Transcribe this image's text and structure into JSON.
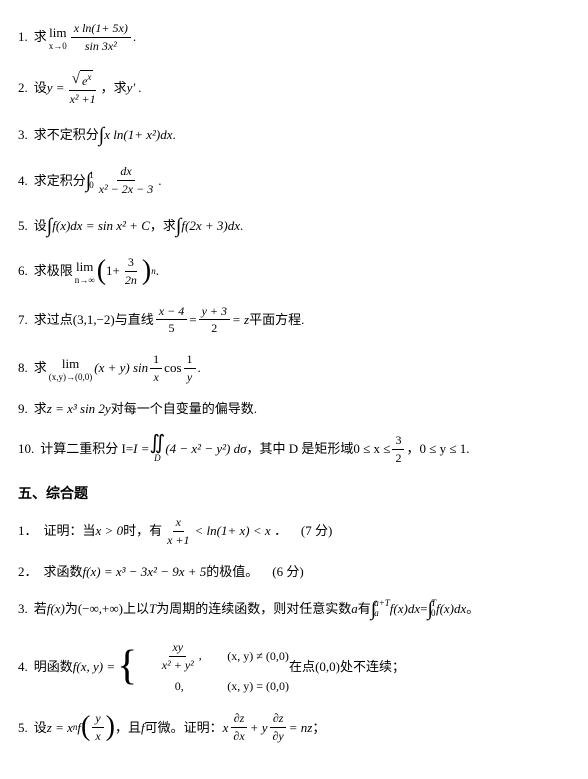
{
  "section4": {
    "problems": [
      {
        "num": "1.",
        "prefix": "求",
        "suffix": "."
      },
      {
        "num": "2.",
        "prefix": "设 ",
        "mid": "，求",
        "end": "y′ ."
      },
      {
        "num": "3.",
        "prefix": "求不定积分",
        "suffix": "."
      },
      {
        "num": "4.",
        "prefix": "求定积分",
        "suffix": "."
      },
      {
        "num": "5.",
        "prefix": "设",
        "mid": "，求",
        "suffix": "."
      },
      {
        "num": "6.",
        "prefix": "求极限",
        "suffix": "."
      },
      {
        "num": "7.",
        "prefix": "求过点",
        "point": "(3,1,−2)",
        "mid": "与直线",
        "eq": "= z",
        "suffix": " 平面方程."
      },
      {
        "num": "8.",
        "prefix": "求 ",
        "suffix": "."
      },
      {
        "num": "9.",
        "prefix": "求",
        "expr": "z = x³ sin 2y",
        "suffix": " 对每一个自变量的偏导数."
      },
      {
        "num": "10.",
        "prefix": "计算二重积分 I=",
        "mid": "，其中 D 是矩形域",
        "cond": "0 ≤ x ≤",
        "cond2": "，0 ≤ y ≤ 1."
      }
    ]
  },
  "section5": {
    "title": "五、综合题",
    "problems": [
      {
        "num": "1．",
        "prefix": "证明：当",
        "cond": "x > 0",
        "mid": "时，有 ",
        "ineq": "< ln(1+ x) < x ．",
        "points": "(7 分)"
      },
      {
        "num": "2．",
        "prefix": "求函数",
        "expr": "f(x) = x³ − 3x² − 9x + 5",
        "suffix": "的极值。",
        "points": "(6 分)"
      },
      {
        "num": "3.",
        "prefix": "若",
        "fx": "f(x)",
        "mid1": "为",
        "dom": "(−∞,+∞)",
        "mid2": "上以",
        "T": "T",
        "mid3": "为周期的连续函数，则对任意实数",
        "a": "a",
        "mid4": "有",
        "suffix": " 。"
      },
      {
        "num": "4.",
        "prefix": "明函数",
        "mid": "在点",
        "pt": "(0,0)",
        "suffix": "处不连续；"
      },
      {
        "num": "5.",
        "prefix": "设",
        "mid1": "，且",
        "f": "f",
        "mid2": "可微。证明：",
        "suffix": "；"
      }
    ]
  },
  "math": {
    "lim": "lim",
    "x_to_0": "x→0",
    "n_to_inf": "n→∞",
    "xy_to_00": "(x,y)→(0,0)",
    "p1_num": "x ln(1+ 5x)",
    "p1_den": "sin 3x²",
    "p2_lhs": "y =",
    "p2_num_inner": "e",
    "p2_num_exp": "x",
    "p2_den": "x² +1",
    "p3_expr": "x ln(1+ x²)dx",
    "p4_up": "1",
    "p4_lo": "0",
    "p4_num": "dx",
    "p4_den": "x² − 2x − 3",
    "p5_lhs": "f(x)dx = sin x² + C",
    "p5_rhs": "f(2x + 3)dx",
    "p6_in_a": "1+",
    "p6_num": "3",
    "p6_den": "2n",
    "p6_exp": "n",
    "p7_f1n": "x − 4",
    "p7_f1d": "5",
    "p7_f2n": "y + 3",
    "p7_f2d": "2",
    "p8_expr1": "(x + y) sin",
    "p8_f1n": "1",
    "p8_f1d": "x",
    "p8_cos": "cos",
    "p8_f2n": "1",
    "p8_f2d": "y",
    "p10_I": "I =",
    "p10_in": "(4 − x² − y²) dσ",
    "p10_D": "D",
    "p10_f3n": "3",
    "p10_f3d": "2",
    "s5p1_fn": "x",
    "s5p1_fd": "x +1",
    "s5p3_up1": "a+T",
    "s5p3_lo1": "a",
    "s5p3_up2": "T",
    "s5p3_lo2": "0",
    "s5p3_int": "f(x)dx",
    "s5p4_lhs": "f(x, y) =",
    "s5p4_c1n": "xy",
    "s5p4_c1d": "x² + y²",
    "s5p4_c1cond": "(x, y) ≠ (0,0)",
    "s5p4_c2v": "0,",
    "s5p4_c2cond": "(x, y) = (0,0)",
    "s5p5_lhs1": "z = x",
    "s5p5_n": "n",
    "s5p5_lhs2": "f",
    "s5p5_argN": "y",
    "s5p5_argD": "x",
    "s5p5_x": "x",
    "s5p5_dzx_n": "∂z",
    "s5p5_dzx_d": "∂x",
    "s5p5_plus": "+ y",
    "s5p5_dzy_n": "∂z",
    "s5p5_dzy_d": "∂y",
    "s5p5_rhs": "= nz"
  }
}
